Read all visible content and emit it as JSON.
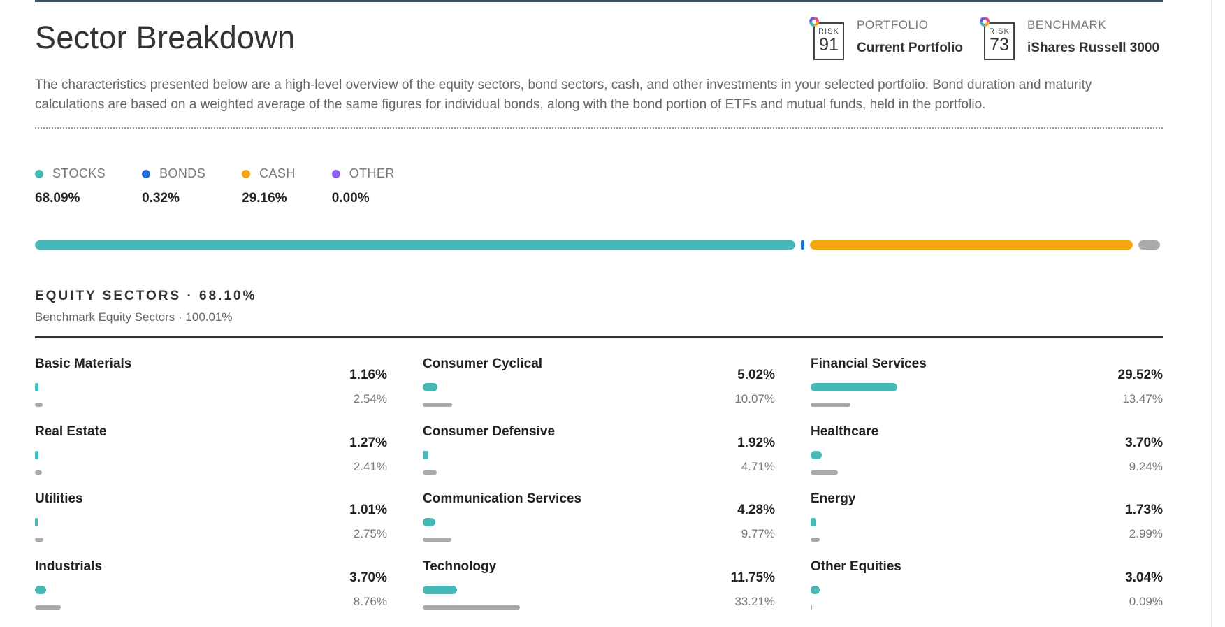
{
  "header": {
    "title": "Sector Breakdown",
    "risk_word": "RISK",
    "portfolio": {
      "label": "PORTFOLIO",
      "name": "Current Portfolio",
      "risk": "91"
    },
    "benchmark": {
      "label": "BENCHMARK",
      "name": "iShares Russell 3000",
      "risk": "73"
    }
  },
  "description": "The characteristics presented below are a high-level overview of the equity sectors, bond sectors, cash, and other investments in your selected portfolio. Bond duration and maturity calculations are based on a weighted average of the same figures for individual bonds, along with the bond portion of ETFs and mutual funds, held in the portfolio.",
  "allocation": [
    {
      "label": "STOCKS",
      "pct": "68.09%",
      "value": 68.09,
      "color": "#46b8b8"
    },
    {
      "label": "BONDS",
      "pct": "0.32%",
      "value": 0.32,
      "color": "#1e6fd9"
    },
    {
      "label": "CASH",
      "pct": "29.16%",
      "value": 29.16,
      "color": "#f5a50f"
    },
    {
      "label": "OTHER",
      "pct": "0.00%",
      "value": 0.0,
      "color": "#8e5cf0"
    }
  ],
  "remainder_color": "#aaaaaa",
  "equity": {
    "heading": "EQUITY SECTORS · 68.10%",
    "benchmark": "Benchmark Equity Sectors · 100.01%"
  },
  "sectors": [
    [
      {
        "name": "Basic Materials",
        "portfolio": "1.16%",
        "benchmark": "2.54%",
        "p": 1.16,
        "b": 2.54
      },
      {
        "name": "Real Estate",
        "portfolio": "1.27%",
        "benchmark": "2.41%",
        "p": 1.27,
        "b": 2.41
      },
      {
        "name": "Utilities",
        "portfolio": "1.01%",
        "benchmark": "2.75%",
        "p": 1.01,
        "b": 2.75
      },
      {
        "name": "Industrials",
        "portfolio": "3.70%",
        "benchmark": "8.76%",
        "p": 3.7,
        "b": 8.76
      }
    ],
    [
      {
        "name": "Consumer Cyclical",
        "portfolio": "5.02%",
        "benchmark": "10.07%",
        "p": 5.02,
        "b": 10.07
      },
      {
        "name": "Consumer Defensive",
        "portfolio": "1.92%",
        "benchmark": "4.71%",
        "p": 1.92,
        "b": 4.71
      },
      {
        "name": "Communication Services",
        "portfolio": "4.28%",
        "benchmark": "9.77%",
        "p": 4.28,
        "b": 9.77
      },
      {
        "name": "Technology",
        "portfolio": "11.75%",
        "benchmark": "33.21%",
        "p": 11.75,
        "b": 33.21
      }
    ],
    [
      {
        "name": "Financial Services",
        "portfolio": "29.52%",
        "benchmark": "13.47%",
        "p": 29.52,
        "b": 13.47
      },
      {
        "name": "Healthcare",
        "portfolio": "3.70%",
        "benchmark": "9.24%",
        "p": 3.7,
        "b": 9.24
      },
      {
        "name": "Energy",
        "portfolio": "1.73%",
        "benchmark": "2.99%",
        "p": 1.73,
        "b": 2.99
      },
      {
        "name": "Other Equities",
        "portfolio": "3.04%",
        "benchmark": "0.09%",
        "p": 3.04,
        "b": 0.09
      }
    ]
  ]
}
